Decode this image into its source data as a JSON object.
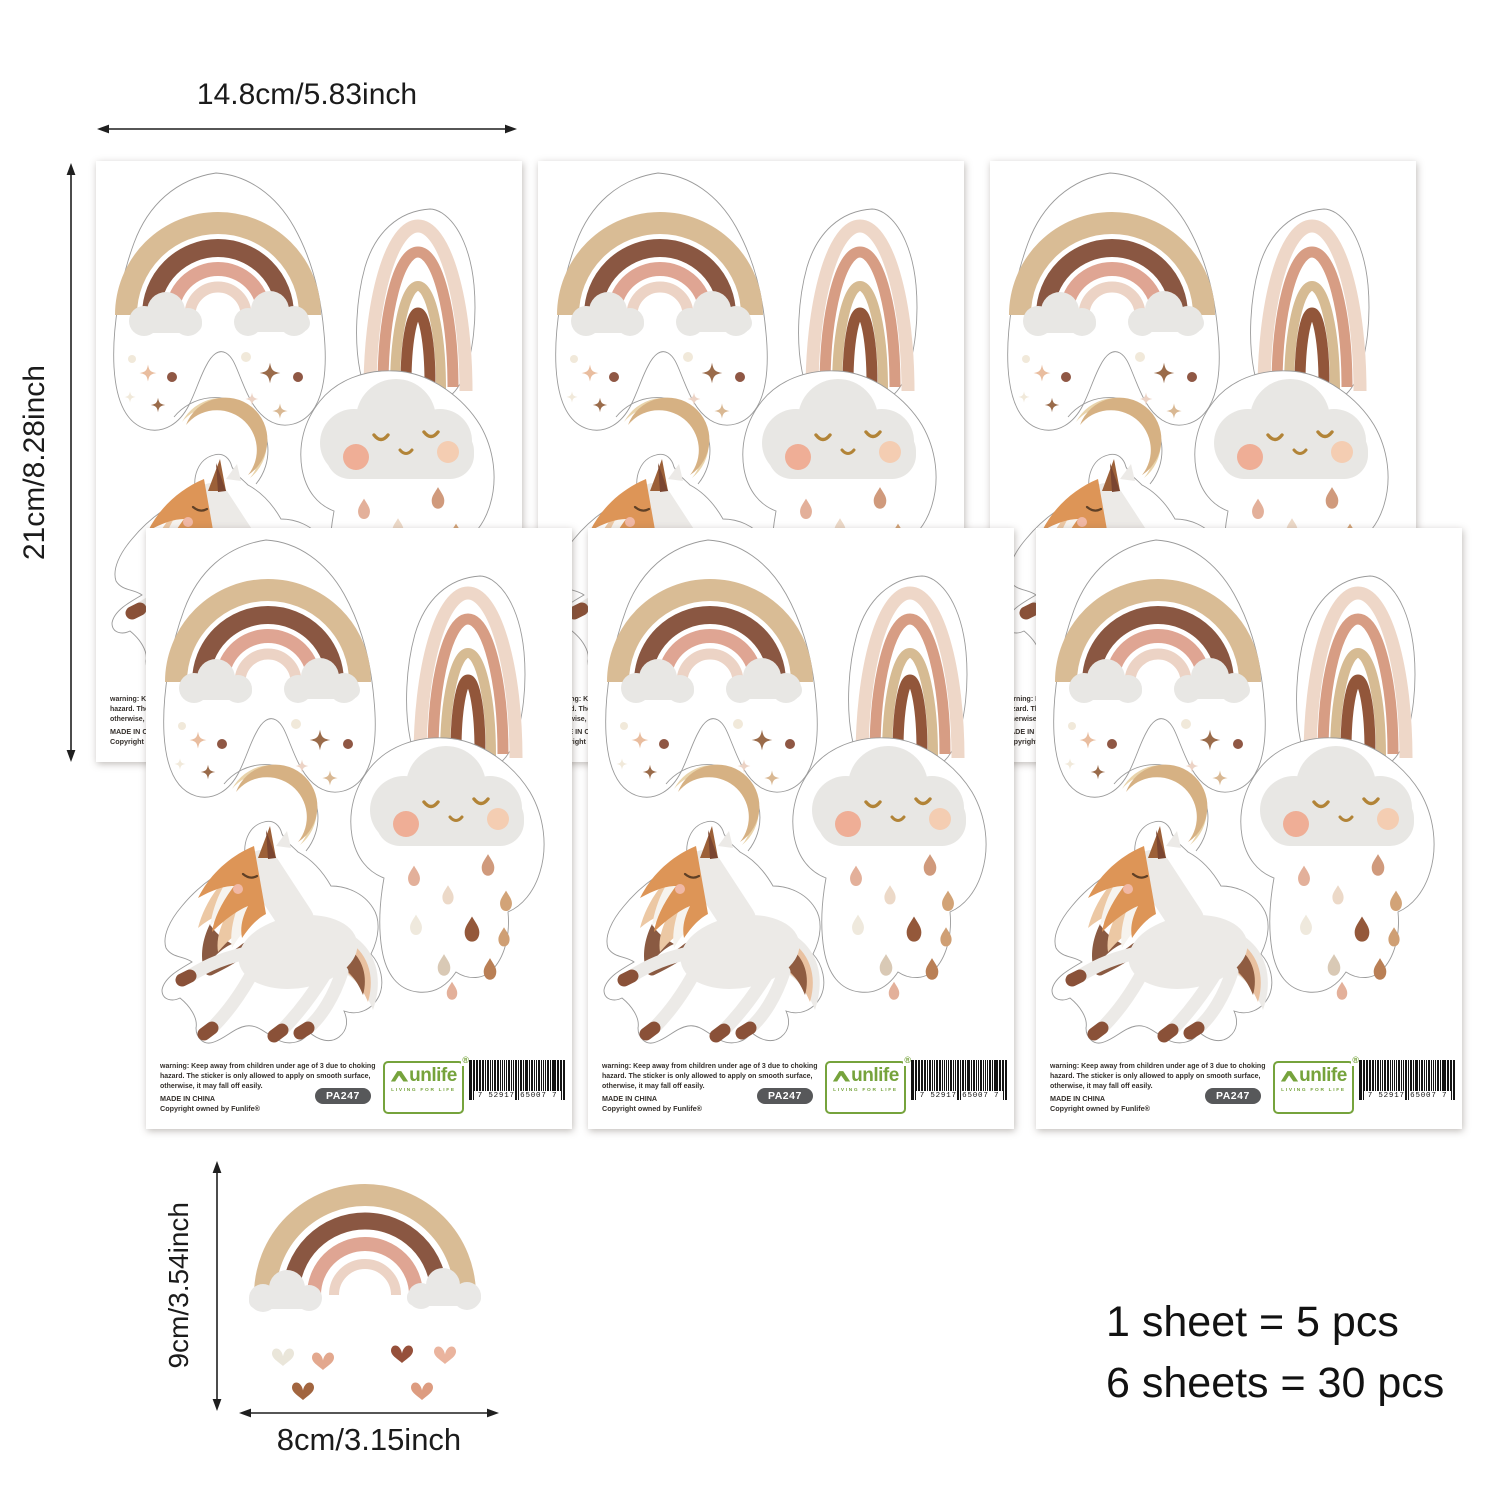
{
  "annotations": {
    "sheet_width_label": "14.8cm/5.83inch",
    "sheet_height_label": "21cm/8.28inch",
    "single_sticker_height_label": "9cm/3.54inch",
    "single_sticker_width_label": "8cm/3.15inch"
  },
  "pack_info": {
    "line1": "1 sheet = 5 pcs",
    "line2": "6 sheets = 30 pcs",
    "sheets_shown": 6,
    "stickers_per_sheet": 5,
    "total_pcs": 30
  },
  "sheet": {
    "warning_text": "warning: Keep away from children under age of 3 due to choking hazard. The sticker is only allowed to apply on smooth surface, otherwise, it may fall off easily.",
    "made_in": "MADE IN CHINA",
    "copyright_text": "Copyright owned by Funlife®",
    "sku": "PA247",
    "brand": {
      "logo_text": "unlife",
      "registered_mark": "®",
      "tagline": "LIVING FOR LIFE"
    },
    "barcode_digits": "7 52917 65007 7",
    "sticker_names": [
      "rainbow-with-clouds-and-sparkles",
      "boho-arch-rainbow",
      "crescent-moon",
      "prancing-unicorn",
      "smiling-rain-cloud"
    ]
  },
  "single_sticker_name": "rainbow-with-clouds-and-hearts",
  "colors": {
    "rainbow_tan": "#d9bc95",
    "rainbow_brown": "#8a5742",
    "rainbow_salmon": "#dfa593",
    "rainbow_blush": "#ecd3c5",
    "arch_blush": "#eed7c8",
    "arch_salmon": "#d79d84",
    "arch_tan": "#d6bb93",
    "arch_brown": "#92563a",
    "cloud_gray": "#e8e7e4",
    "unicorn_white": "#eceae7",
    "mane_orange": "#dd9557",
    "mane_peach": "#ecc8a4",
    "hoof_brown": "#8a5138",
    "moon_tan": "#d6b183",
    "moon_light": "#e9d4ab",
    "logo_green": "#76a33c",
    "badge_gray": "#57585a",
    "dimension_text": "#1d1d1d"
  }
}
